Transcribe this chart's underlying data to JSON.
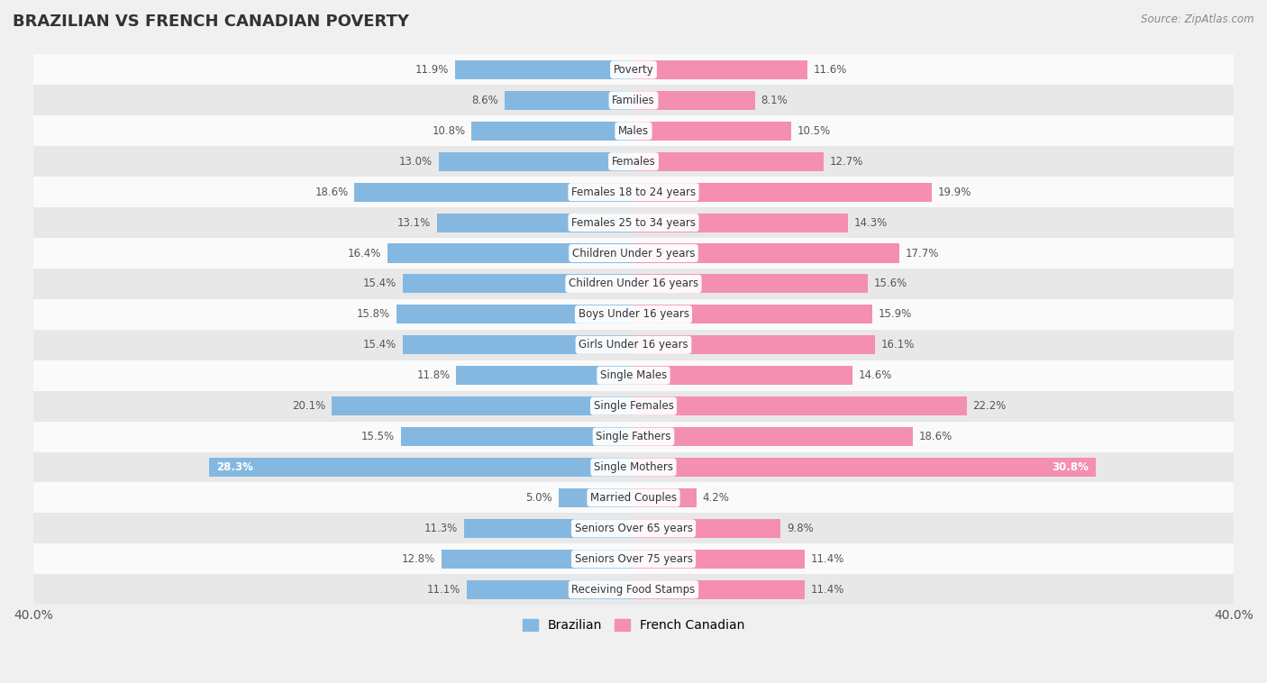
{
  "title": "BRAZILIAN VS FRENCH CANADIAN POVERTY",
  "source": "Source: ZipAtlas.com",
  "categories": [
    "Poverty",
    "Families",
    "Males",
    "Females",
    "Females 18 to 24 years",
    "Females 25 to 34 years",
    "Children Under 5 years",
    "Children Under 16 years",
    "Boys Under 16 years",
    "Girls Under 16 years",
    "Single Males",
    "Single Females",
    "Single Fathers",
    "Single Mothers",
    "Married Couples",
    "Seniors Over 65 years",
    "Seniors Over 75 years",
    "Receiving Food Stamps"
  ],
  "brazilian": [
    11.9,
    8.6,
    10.8,
    13.0,
    18.6,
    13.1,
    16.4,
    15.4,
    15.8,
    15.4,
    11.8,
    20.1,
    15.5,
    28.3,
    5.0,
    11.3,
    12.8,
    11.1
  ],
  "french_canadian": [
    11.6,
    8.1,
    10.5,
    12.7,
    19.9,
    14.3,
    17.7,
    15.6,
    15.9,
    16.1,
    14.6,
    22.2,
    18.6,
    30.8,
    4.2,
    9.8,
    11.4,
    11.4
  ],
  "brazilian_color": "#85b8e0",
  "french_canadian_color": "#f48fb1",
  "background_color": "#f0f0f0",
  "row_bg_light": "#fafafa",
  "row_bg_dark": "#e8e8e8",
  "xlim": 40.0,
  "bar_height": 0.62,
  "legend_labels": [
    "Brazilian",
    "French Canadian"
  ]
}
